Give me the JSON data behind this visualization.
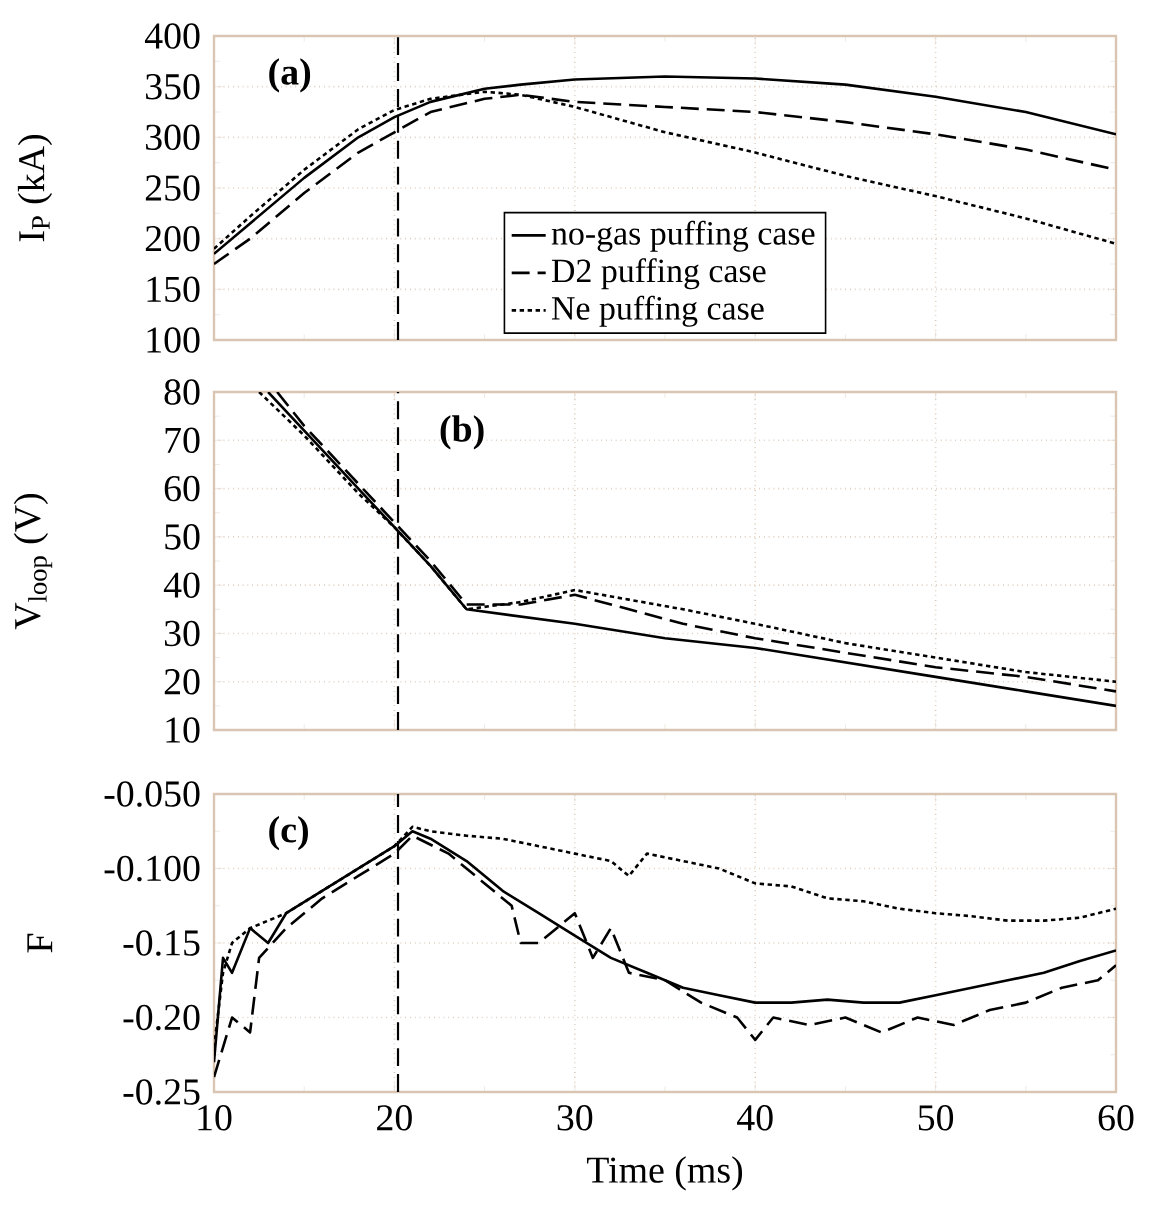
{
  "chart_data": [
    {
      "type": "line",
      "title": "(a)",
      "ylabel": "I$_{P}$ (kA)",
      "xlim": [
        10,
        60
      ],
      "xticks": [
        10,
        20,
        30,
        40,
        50,
        60
      ],
      "ylim": [
        100,
        400
      ],
      "yticks": [
        100,
        150,
        200,
        250,
        300,
        350,
        400
      ],
      "tick_labels": "y",
      "grid": true,
      "legend": "bottom",
      "x": [
        10,
        12,
        15,
        18,
        20,
        22,
        25,
        27,
        30,
        35,
        40,
        45,
        50,
        55,
        60
      ],
      "series": [
        {
          "name": "no-gas puffing case",
          "color": "#000000",
          "line_style": "solid",
          "values": [
            185,
            215,
            260,
            300,
            320,
            335,
            348,
            352,
            357,
            360,
            358,
            352,
            340,
            325,
            303
          ]
        },
        {
          "name": "D2 puffing case",
          "color": "#000000",
          "line_style": "dashed",
          "values": [
            175,
            200,
            245,
            285,
            305,
            325,
            338,
            342,
            335,
            330,
            325,
            315,
            303,
            288,
            268
          ]
        },
        {
          "name": "Ne puffing case",
          "color": "#000000",
          "line_style": "dotted",
          "values": [
            190,
            222,
            268,
            308,
            327,
            338,
            345,
            342,
            330,
            305,
            285,
            262,
            242,
            220,
            195
          ]
        }
      ],
      "ref_lines": [
        {
          "axis": "x",
          "value": 20.2,
          "color": "#000000",
          "line_style": "dashed"
        }
      ]
    },
    {
      "type": "line",
      "title": "(b)",
      "ylabel": "V$_{loop}$ (V)",
      "xlim": [
        10,
        60
      ],
      "xticks": [
        10,
        20,
        30,
        40,
        50,
        60
      ],
      "ylim": [
        10,
        80
      ],
      "yticks": [
        10,
        20,
        30,
        40,
        50,
        60,
        70,
        80
      ],
      "tick_labels": "y",
      "grid": true,
      "series": [
        {
          "color": "#000000",
          "line_style": "solid",
          "x": [
            13,
            15,
            18,
            20,
            22,
            24,
            30,
            35,
            40,
            45,
            50,
            55,
            60
          ],
          "values": [
            80,
            72,
            60,
            52,
            44,
            35,
            32,
            29,
            27,
            24,
            21,
            18,
            15
          ]
        },
        {
          "color": "#000000",
          "line_style": "dashed",
          "x": [
            13.5,
            15,
            18,
            20,
            22,
            24,
            27,
            30,
            33,
            36,
            40,
            45,
            50,
            55,
            60
          ],
          "values": [
            80,
            73,
            61,
            53,
            45,
            36,
            36,
            38,
            35,
            32,
            29,
            26,
            23,
            21,
            18
          ]
        },
        {
          "color": "#000000",
          "line_style": "dotted",
          "x": [
            12.5,
            15,
            18,
            20,
            22,
            24,
            27,
            30,
            33,
            36,
            40,
            45,
            50,
            55,
            60
          ],
          "values": [
            80,
            71,
            59,
            52,
            44,
            35,
            36.5,
            39,
            37,
            35,
            32,
            28,
            25,
            22,
            20
          ]
        }
      ],
      "ref_lines": [
        {
          "axis": "x",
          "value": 20.2,
          "color": "#000000",
          "line_style": "dashed"
        }
      ]
    },
    {
      "type": "line",
      "title": "(c)",
      "xlabel": "Time (ms)",
      "ylabel": "F",
      "xlim": [
        10,
        60
      ],
      "xticks": [
        10,
        20,
        30,
        40,
        50,
        60
      ],
      "ylim": [
        -0.25,
        -0.05
      ],
      "yticks": [
        {
          "value": -0.25,
          "label": "-0.25"
        },
        {
          "value": -0.2,
          "label": "-0.20"
        },
        {
          "value": -0.15,
          "label": "-0.15"
        },
        {
          "value": -0.1,
          "label": "-0.100"
        },
        {
          "value": -0.05,
          "label": "-0.050"
        }
      ],
      "grid": true,
      "series": [
        {
          "color": "#000000",
          "line_style": "solid",
          "x": [
            10,
            10.5,
            11,
            12,
            13,
            14,
            16,
            18,
            20,
            21,
            22,
            24,
            26,
            28,
            30,
            32,
            34,
            36,
            38,
            40,
            42,
            44,
            46,
            48,
            50,
            52,
            54,
            56,
            58,
            60
          ],
          "values": [
            -0.23,
            -0.16,
            -0.17,
            -0.14,
            -0.15,
            -0.13,
            -0.115,
            -0.1,
            -0.085,
            -0.075,
            -0.08,
            -0.095,
            -0.115,
            -0.13,
            -0.145,
            -0.16,
            -0.17,
            -0.18,
            -0.185,
            -0.19,
            -0.19,
            -0.188,
            -0.19,
            -0.19,
            -0.185,
            -0.18,
            -0.175,
            -0.17,
            -0.162,
            -0.155
          ]
        },
        {
          "color": "#000000",
          "line_style": "dashed",
          "x": [
            10,
            11,
            12,
            12.5,
            14,
            16,
            18,
            20,
            21,
            23,
            25,
            26.5,
            27,
            28,
            29,
            30,
            31,
            32,
            33,
            35,
            37,
            39,
            40,
            41,
            43,
            45,
            47,
            49,
            51,
            53,
            55,
            57,
            59,
            60
          ],
          "values": [
            -0.24,
            -0.2,
            -0.21,
            -0.16,
            -0.14,
            -0.12,
            -0.105,
            -0.09,
            -0.078,
            -0.09,
            -0.11,
            -0.125,
            -0.15,
            -0.15,
            -0.14,
            -0.13,
            -0.16,
            -0.14,
            -0.17,
            -0.175,
            -0.19,
            -0.2,
            -0.215,
            -0.2,
            -0.205,
            -0.2,
            -0.21,
            -0.2,
            -0.205,
            -0.195,
            -0.19,
            -0.18,
            -0.175,
            -0.165
          ]
        },
        {
          "color": "#000000",
          "line_style": "dotted",
          "x": [
            10,
            10.5,
            11,
            12,
            14,
            16,
            18,
            20,
            21,
            22,
            24,
            26,
            28,
            30,
            32,
            33,
            34,
            36,
            38,
            40,
            42,
            44,
            46,
            48,
            50,
            52,
            54,
            56,
            58,
            60
          ],
          "values": [
            -0.22,
            -0.17,
            -0.15,
            -0.14,
            -0.13,
            -0.115,
            -0.1,
            -0.085,
            -0.072,
            -0.075,
            -0.078,
            -0.08,
            -0.085,
            -0.09,
            -0.095,
            -0.105,
            -0.09,
            -0.095,
            -0.1,
            -0.11,
            -0.112,
            -0.12,
            -0.122,
            -0.127,
            -0.13,
            -0.132,
            -0.135,
            -0.135,
            -0.133,
            -0.127
          ]
        }
      ],
      "ref_lines": [
        {
          "axis": "x",
          "value": 20.2,
          "color": "#000000",
          "line_style": "dashed"
        }
      ]
    }
  ]
}
